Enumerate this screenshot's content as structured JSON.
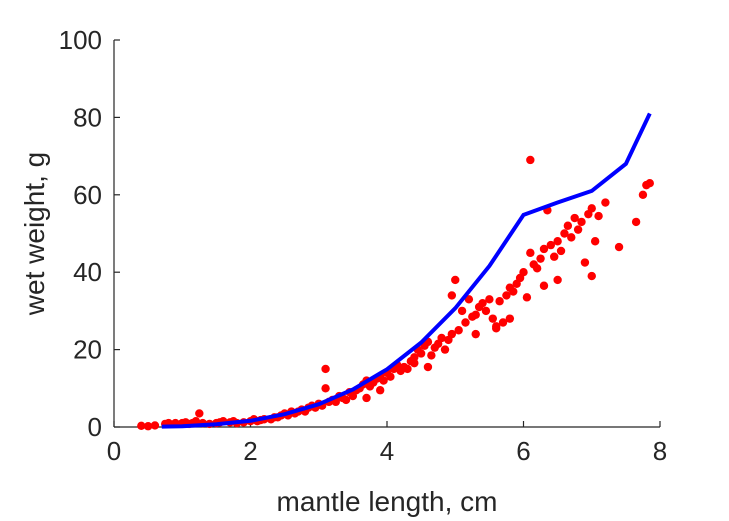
{
  "chart_data": {
    "type": "scatter",
    "title": "",
    "xlabel": "mantle length, cm",
    "ylabel": "wet weight, g",
    "xlim": [
      0,
      8
    ],
    "ylim": [
      0,
      100
    ],
    "xticks": [
      0,
      2,
      4,
      6,
      8
    ],
    "yticks": [
      0,
      20,
      40,
      60,
      80,
      100
    ],
    "grid": false,
    "colors": {
      "points": "#ff0000",
      "fit": "#0000ff",
      "axis": "#262626"
    },
    "fit_curve": {
      "type": "line",
      "x": [
        0.7,
        1.0,
        1.5,
        2.0,
        2.5,
        3.0,
        3.5,
        4.0,
        4.5,
        5.0,
        5.5,
        6.0,
        6.5,
        7.0,
        7.5,
        7.85
      ],
      "y": [
        0.1,
        0.2,
        0.7,
        1.6,
        3.3,
        5.9,
        9.7,
        14.9,
        21.8,
        30.7,
        41.6,
        54.8,
        58.0,
        61.0,
        68.0,
        81.0
      ]
    },
    "scatter": {
      "type": "scatter",
      "x": [
        0.4,
        0.5,
        0.6,
        0.75,
        0.8,
        0.9,
        1.0,
        1.05,
        1.1,
        1.15,
        1.2,
        1.25,
        1.3,
        1.4,
        1.5,
        1.55,
        1.6,
        1.7,
        1.75,
        1.8,
        1.9,
        2.0,
        2.05,
        2.1,
        2.15,
        2.2,
        2.3,
        2.35,
        2.4,
        2.45,
        2.5,
        2.55,
        2.6,
        2.65,
        2.7,
        2.75,
        2.8,
        2.85,
        2.9,
        2.95,
        3.0,
        3.05,
        3.1,
        3.1,
        3.15,
        3.2,
        3.25,
        3.3,
        3.35,
        3.4,
        3.45,
        3.5,
        3.55,
        3.6,
        3.65,
        3.7,
        3.75,
        3.8,
        3.85,
        3.9,
        3.95,
        4.0,
        4.05,
        4.1,
        4.15,
        4.2,
        4.25,
        4.3,
        4.35,
        4.4,
        4.45,
        4.5,
        4.55,
        4.6,
        4.65,
        4.7,
        4.75,
        4.8,
        4.85,
        4.9,
        4.95,
        5.0,
        5.05,
        5.1,
        5.15,
        5.2,
        5.25,
        5.3,
        5.35,
        5.4,
        5.45,
        5.5,
        5.55,
        5.6,
        5.65,
        5.7,
        5.75,
        5.8,
        5.85,
        5.9,
        5.95,
        6.0,
        6.05,
        6.1,
        6.1,
        6.15,
        6.2,
        6.25,
        6.3,
        6.35,
        6.4,
        6.45,
        6.5,
        6.55,
        6.6,
        6.65,
        6.7,
        6.75,
        6.8,
        6.85,
        6.9,
        6.95,
        7.0,
        7.05,
        7.1,
        7.2,
        7.4,
        7.65,
        7.75,
        7.8,
        7.85,
        4.95,
        5.3,
        5.6,
        5.8,
        6.3,
        6.5,
        7.0,
        4.6,
        4.4,
        3.7,
        3.9
      ],
      "y": [
        0.3,
        0.2,
        0.4,
        0.8,
        1.0,
        1.0,
        1.0,
        1.2,
        0.8,
        1.0,
        1.5,
        3.5,
        1.0,
        0.8,
        1.0,
        1.2,
        1.5,
        1.2,
        1.5,
        1.0,
        1.2,
        1.5,
        2.0,
        1.5,
        1.8,
        2.0,
        2.0,
        2.5,
        2.5,
        3.0,
        3.5,
        3.0,
        4.0,
        3.5,
        4.0,
        4.5,
        4.0,
        5.0,
        5.5,
        5.0,
        6.0,
        5.5,
        10.0,
        15.0,
        6.5,
        7.0,
        6.5,
        8.0,
        7.5,
        7.0,
        9.0,
        8.0,
        9.5,
        10.0,
        11.0,
        12.0,
        10.5,
        11.5,
        12.5,
        13.0,
        12.0,
        14.0,
        13.0,
        15.0,
        16.0,
        14.5,
        15.5,
        15.0,
        17.0,
        18.0,
        20.0,
        19.0,
        21.0,
        22.0,
        18.5,
        20.5,
        21.5,
        23.0,
        20.0,
        22.5,
        24.0,
        38.0,
        25.0,
        30.0,
        27.0,
        33.0,
        28.5,
        29.0,
        31.0,
        32.0,
        30.0,
        33.0,
        28.0,
        26.0,
        32.5,
        27.0,
        34.0,
        36.0,
        35.0,
        37.0,
        38.5,
        40.0,
        33.5,
        69.0,
        45.0,
        42.0,
        41.0,
        43.5,
        46.0,
        56.0,
        47.0,
        44.0,
        48.0,
        45.5,
        50.0,
        52.0,
        49.0,
        54.0,
        51.0,
        53.0,
        42.5,
        55.0,
        56.5,
        48.0,
        54.5,
        58.0,
        46.5,
        53.0,
        60.0,
        62.5,
        63.0,
        34.0,
        24.0,
        25.5,
        28.0,
        36.5,
        38.0,
        39.0,
        15.5,
        16.5,
        7.5,
        9.5
      ]
    }
  }
}
